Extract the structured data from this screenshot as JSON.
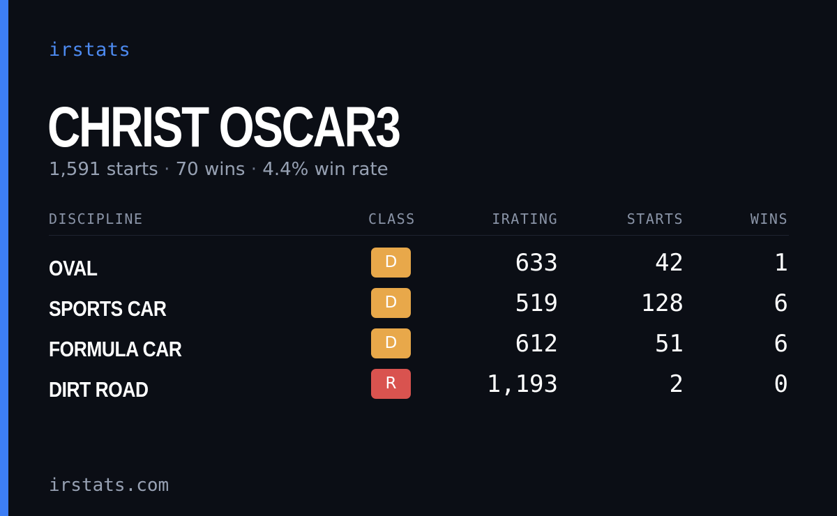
{
  "brand": "irstats",
  "driver_name": "CHRIST OSCAR3",
  "summary": {
    "starts": "1,591 starts",
    "wins": "70 wins",
    "win_rate": "4.4% win rate",
    "separator": "·"
  },
  "table": {
    "headers": {
      "discipline": "DISCIPLINE",
      "class": "CLASS",
      "irating": "IRATING",
      "starts": "STARTS",
      "wins": "WINS"
    },
    "rows": [
      {
        "discipline": "OVAL",
        "class": "D",
        "class_color": "#e8a84a",
        "irating": "633",
        "starts": "42",
        "wins": "1"
      },
      {
        "discipline": "SPORTS CAR",
        "class": "D",
        "class_color": "#e8a84a",
        "irating": "519",
        "starts": "128",
        "wins": "6"
      },
      {
        "discipline": "FORMULA CAR",
        "class": "D",
        "class_color": "#e8a84a",
        "irating": "612",
        "starts": "51",
        "wins": "6"
      },
      {
        "discipline": "DIRT ROAD",
        "class": "R",
        "class_color": "#d9534f",
        "irating": "1,193",
        "starts": "2",
        "wins": "0"
      }
    ]
  },
  "footer_url": "irstats.com",
  "colors": {
    "background": "#0b0e15",
    "accent": "#3d7ef5",
    "brand_text": "#4d8af0",
    "muted_text": "#97a1b3"
  }
}
